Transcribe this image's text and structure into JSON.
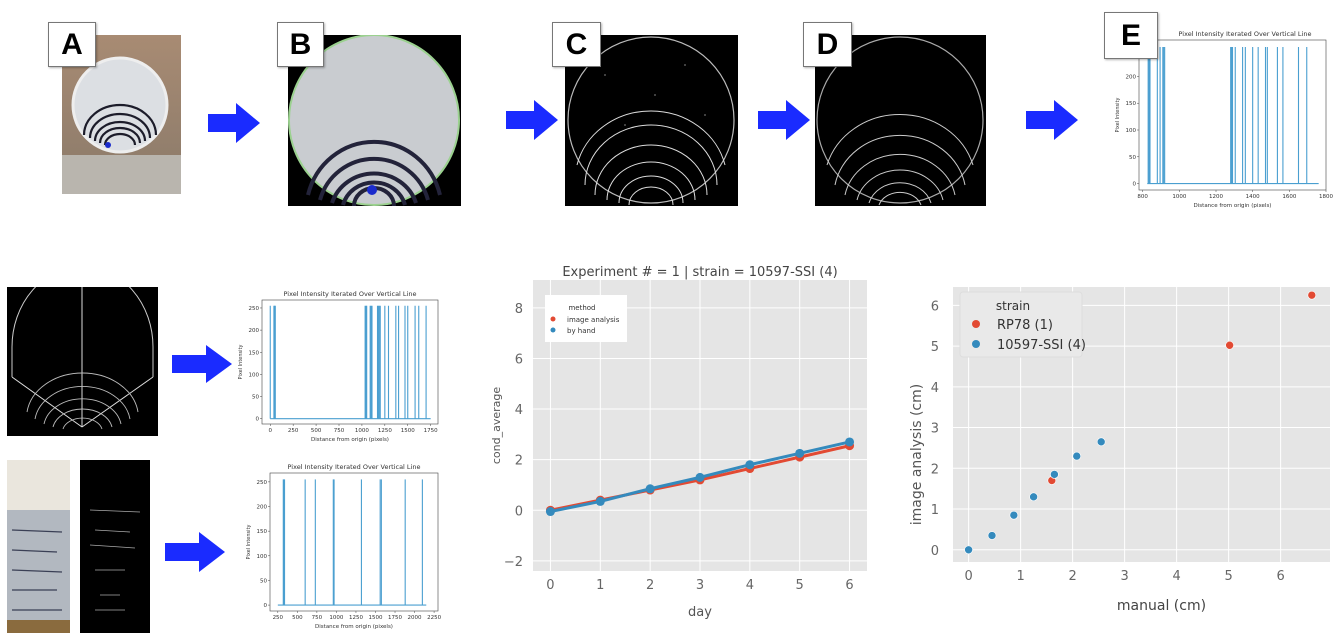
{
  "panels": {
    "a": {
      "label": "A"
    },
    "b": {
      "label": "B"
    },
    "c": {
      "label": "C"
    },
    "d": {
      "label": "D"
    },
    "e": {
      "label": "E"
    }
  },
  "colors": {
    "arrow": "#1a2bff",
    "red": "#e24a33",
    "blue": "#348abd",
    "plot_bg": "#e5e5e5",
    "spike": "#4a9fd0"
  },
  "chart_data": [
    {
      "id": "panel-e-intensity",
      "type": "bar",
      "title": "Pixel Intensity Iterated Over Vertical Line",
      "xlabel": "Distance from origin (pixels)",
      "ylabel": "Pixel Intensity",
      "xlim": [
        780,
        1800
      ],
      "ylim": [
        -12,
        268
      ],
      "xticks": [
        800,
        1000,
        1200,
        1400,
        1600,
        1800
      ],
      "yticks": [
        0,
        50,
        100,
        150,
        200
      ],
      "baseline": [
        825,
        1760
      ],
      "spike_value": 255,
      "spikes_x": [
        830,
        835,
        840,
        880,
        895,
        910,
        915,
        920,
        1280,
        1285,
        1290,
        1305,
        1345,
        1360,
        1400,
        1430,
        1470,
        1480,
        1535,
        1565,
        1650,
        1695
      ]
    },
    {
      "id": "middle-left-intensity",
      "type": "bar",
      "title": "Pixel Intensity Iterated Over Vertical Line",
      "xlabel": "Distance from origin (pixels)",
      "ylabel": "Pixel Intensity",
      "xlim": [
        -90,
        1830
      ],
      "ylim": [
        -12,
        268
      ],
      "xticks": [
        0,
        250,
        500,
        750,
        1000,
        1250,
        1500,
        1750
      ],
      "yticks": [
        0,
        50,
        100,
        150,
        200,
        250
      ],
      "baseline": [
        0,
        1750
      ],
      "spike_value": 255,
      "spikes_x": [
        0,
        40,
        48,
        55,
        1035,
        1045,
        1052,
        1090,
        1100,
        1110,
        1170,
        1180,
        1190,
        1200,
        1250,
        1290,
        1370,
        1400,
        1470,
        1500,
        1580,
        1620,
        1700
      ]
    },
    {
      "id": "bottom-left-intensity",
      "type": "bar",
      "title": "Pixel Intensity Iterated Over Vertical Line",
      "xlabel": "Distance from origin (pixels)",
      "ylabel": "Pixel Intensity",
      "xlim": [
        150,
        2300
      ],
      "ylim": [
        -12,
        268
      ],
      "xticks": [
        250,
        500,
        750,
        1000,
        1250,
        1500,
        1750,
        2000,
        2250
      ],
      "yticks": [
        0,
        50,
        100,
        150,
        200,
        250
      ],
      "baseline": [
        250,
        2150
      ],
      "spike_value": 255,
      "spikes_x": [
        320,
        328,
        336,
        600,
        730,
        960,
        970,
        1320,
        1560,
        1575,
        1880,
        2100
      ]
    },
    {
      "id": "growth-line-chart",
      "type": "line",
      "title": "Experiment # = 1 | strain = 10597-SSI (4)",
      "xlabel": "day",
      "ylabel": "cond_average",
      "xlim": [
        -0.35,
        6.35
      ],
      "ylim": [
        -2.4,
        9.1
      ],
      "xticks": [
        0,
        1,
        2,
        3,
        4,
        5,
        6
      ],
      "yticks": [
        -2,
        0,
        2,
        4,
        6,
        8
      ],
      "grid": true,
      "legend": {
        "title": "method",
        "placement": "top-left"
      },
      "x": [
        0,
        1,
        2,
        3,
        4,
        5,
        6
      ],
      "series": [
        {
          "name": "image analysis",
          "color": "#e24a33",
          "values": [
            0.0,
            0.4,
            0.8,
            1.2,
            1.65,
            2.1,
            2.55
          ]
        },
        {
          "name": "by hand",
          "color": "#348abd",
          "values": [
            -0.05,
            0.35,
            0.85,
            1.3,
            1.8,
            2.25,
            2.7
          ]
        }
      ]
    },
    {
      "id": "method-comparison-scatter",
      "type": "scatter",
      "xlabel": "manual (cm)",
      "ylabel": "image analysis (cm)",
      "xlim": [
        -0.3,
        6.95
      ],
      "ylim": [
        -0.3,
        6.45
      ],
      "xticks": [
        0,
        1,
        2,
        3,
        4,
        5,
        6
      ],
      "yticks": [
        0,
        1,
        2,
        3,
        4,
        5,
        6
      ],
      "grid": true,
      "legend": {
        "title": "strain",
        "placement": "top-left"
      },
      "series": [
        {
          "name": "RP78 (1)",
          "color": "#e24a33",
          "points": [
            [
              1.6,
              1.7
            ],
            [
              5.02,
              5.02
            ],
            [
              6.6,
              6.25
            ]
          ]
        },
        {
          "name": "10597-SSI (4)",
          "color": "#348abd",
          "points": [
            [
              0,
              0
            ],
            [
              0.45,
              0.35
            ],
            [
              0.87,
              0.85
            ],
            [
              1.25,
              1.3
            ],
            [
              1.65,
              1.85
            ],
            [
              2.08,
              2.3
            ],
            [
              2.55,
              2.65
            ]
          ]
        }
      ]
    }
  ]
}
